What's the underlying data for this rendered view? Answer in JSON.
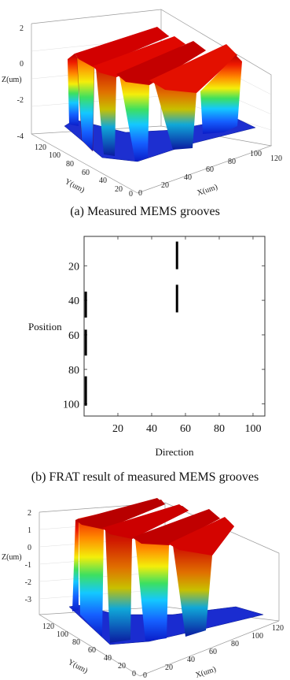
{
  "figure_a": {
    "caption": "(a) Measured MEMS grooves",
    "zlabel": "Z(um)",
    "ylabel": "Y(um)",
    "xlabel": "X(um)",
    "zticks": [
      "2",
      "0",
      "-2",
      "-4"
    ],
    "yticks": [
      "120",
      "100",
      "80",
      "60",
      "40",
      "20",
      "0"
    ],
    "xticks": [
      "0",
      "20",
      "40",
      "60",
      "80",
      "100",
      "120"
    ]
  },
  "figure_b": {
    "caption": "(b) FRAT result of measured MEMS grooves",
    "ylabel": "Position",
    "xlabel": "Direction"
  },
  "figure_c": {
    "zlabel": "Z(um)",
    "ylabel": "Y(um)",
    "xlabel": "X(um)",
    "zticks": [
      "2",
      "1",
      "0",
      "-1",
      "-2",
      "-3"
    ],
    "yticks": [
      "120",
      "100",
      "80",
      "60",
      "40",
      "20",
      "0"
    ],
    "xticks": [
      "0",
      "20",
      "40",
      "60",
      "80",
      "100",
      "120"
    ]
  },
  "chart_data": [
    {
      "type": "scatter",
      "title": "",
      "xlabel": "Direction",
      "ylabel": "Position",
      "xlim": [
        0,
        107
      ],
      "ylim": [
        107,
        3
      ],
      "xticks": [
        20,
        40,
        60,
        80,
        100
      ],
      "yticks": [
        20,
        40,
        60,
        80,
        100
      ],
      "grid": false,
      "segments": [
        {
          "x": 55,
          "y_from": 6,
          "y_to": 22
        },
        {
          "x": 55,
          "y_from": 31,
          "y_to": 47
        },
        {
          "x": 1,
          "y_from": 35,
          "y_to": 50
        },
        {
          "x": 1,
          "y_from": 57,
          "y_to": 72
        },
        {
          "x": 1,
          "y_from": 84,
          "y_to": 101
        }
      ]
    }
  ],
  "colors": {
    "surface_top": "#cc0000",
    "surface_mid_orange": "#ff8a00",
    "surface_mid_yellow": "#f4ee0a",
    "surface_mid_green": "#3de060",
    "surface_mid_cyan": "#14c8ff",
    "surface_bottom": "#0a1cc8",
    "axis": "#555555",
    "grid": "#dcdcdc"
  }
}
